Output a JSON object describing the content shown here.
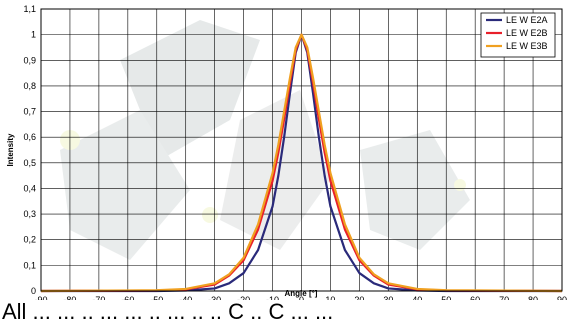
{
  "chart_data": {
    "type": "line",
    "title": "",
    "xlabel": "Angle [°]",
    "ylabel": "Intensity",
    "xlim": [
      -90,
      90
    ],
    "ylim": [
      0,
      1.1
    ],
    "x_ticks": [
      -90,
      -80,
      -70,
      -60,
      -50,
      -40,
      -30,
      -20,
      -10,
      0,
      10,
      20,
      30,
      40,
      50,
      60,
      70,
      80,
      90
    ],
    "y_ticks": [
      "0",
      "0,1",
      "0,2",
      "0,3",
      "0,4",
      "0,5",
      "0,6",
      "0,7",
      "0,8",
      "0,9",
      "1",
      "1,1"
    ],
    "grid": true,
    "legend_position": "top-right",
    "series": [
      {
        "name": "LE W E2A",
        "color": "#2a2a7a",
        "x": [
          -90,
          -50,
          -40,
          -30,
          -25,
          -20,
          -15,
          -10,
          -8,
          -6,
          -4,
          -2,
          0,
          2,
          4,
          6,
          8,
          10,
          15,
          20,
          25,
          30,
          40,
          50,
          90
        ],
        "y": [
          0,
          0,
          0.002,
          0.01,
          0.03,
          0.07,
          0.16,
          0.33,
          0.45,
          0.6,
          0.77,
          0.93,
          1.0,
          0.93,
          0.77,
          0.6,
          0.45,
          0.33,
          0.16,
          0.07,
          0.03,
          0.01,
          0.002,
          0,
          0
        ]
      },
      {
        "name": "LE W E2B",
        "color": "#e8202a",
        "x": [
          -90,
          -50,
          -40,
          -30,
          -25,
          -20,
          -15,
          -10,
          -8,
          -6,
          -4,
          -2,
          0,
          2,
          4,
          6,
          8,
          10,
          15,
          20,
          25,
          30,
          40,
          50,
          90
        ],
        "y": [
          0,
          0.002,
          0.006,
          0.025,
          0.06,
          0.12,
          0.24,
          0.43,
          0.54,
          0.67,
          0.81,
          0.94,
          1.0,
          0.94,
          0.81,
          0.67,
          0.54,
          0.43,
          0.24,
          0.12,
          0.06,
          0.025,
          0.006,
          0.002,
          0
        ]
      },
      {
        "name": "LE W E3B",
        "color": "#f0a020",
        "x": [
          -90,
          -50,
          -40,
          -30,
          -25,
          -20,
          -15,
          -10,
          -8,
          -6,
          -4,
          -2,
          0,
          2,
          4,
          6,
          8,
          10,
          15,
          20,
          25,
          30,
          40,
          50,
          90
        ],
        "y": [
          0,
          0.003,
          0.008,
          0.03,
          0.065,
          0.13,
          0.26,
          0.46,
          0.57,
          0.7,
          0.83,
          0.95,
          1.0,
          0.95,
          0.83,
          0.7,
          0.57,
          0.46,
          0.26,
          0.13,
          0.065,
          0.03,
          0.008,
          0.003,
          0
        ]
      }
    ]
  },
  "caption_fragment": "All  ...   ...   ..   ...   ...   ..   ...   ..   ..   C  ..  C  ...  ..."
}
